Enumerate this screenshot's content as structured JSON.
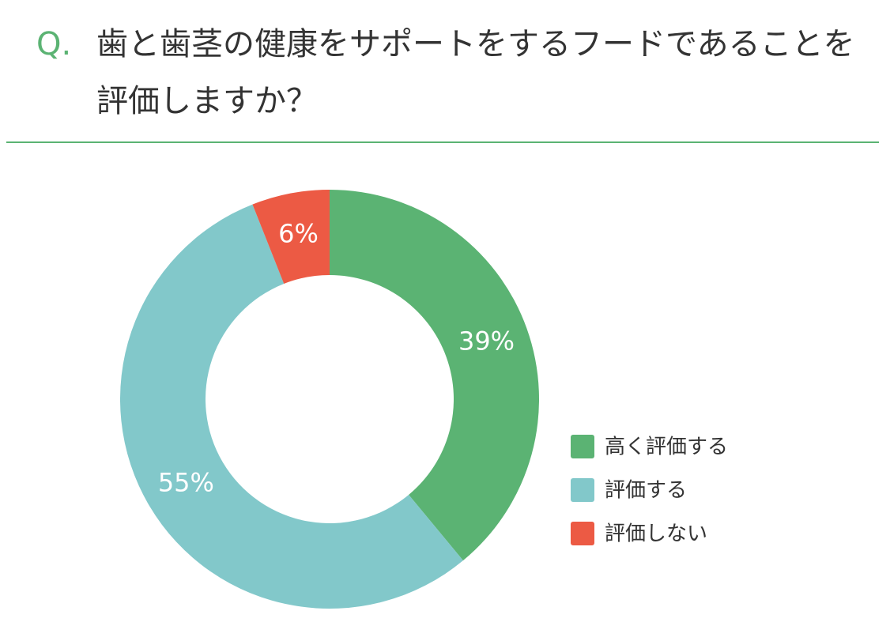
{
  "chart_data": {
    "type": "pie",
    "donut": true,
    "title_prefix": "Q.",
    "title": "歯と歯茎の健康をサポートをするフードであることを評価しますか？",
    "categories": [
      "高く評価する",
      "評価する",
      "評価しない"
    ],
    "values": [
      39,
      55,
      6
    ],
    "value_labels": [
      "39%",
      "55%",
      "6%"
    ],
    "colors": [
      "#5bb373",
      "#82c8ca",
      "#ec5a44"
    ],
    "legend": "right"
  }
}
